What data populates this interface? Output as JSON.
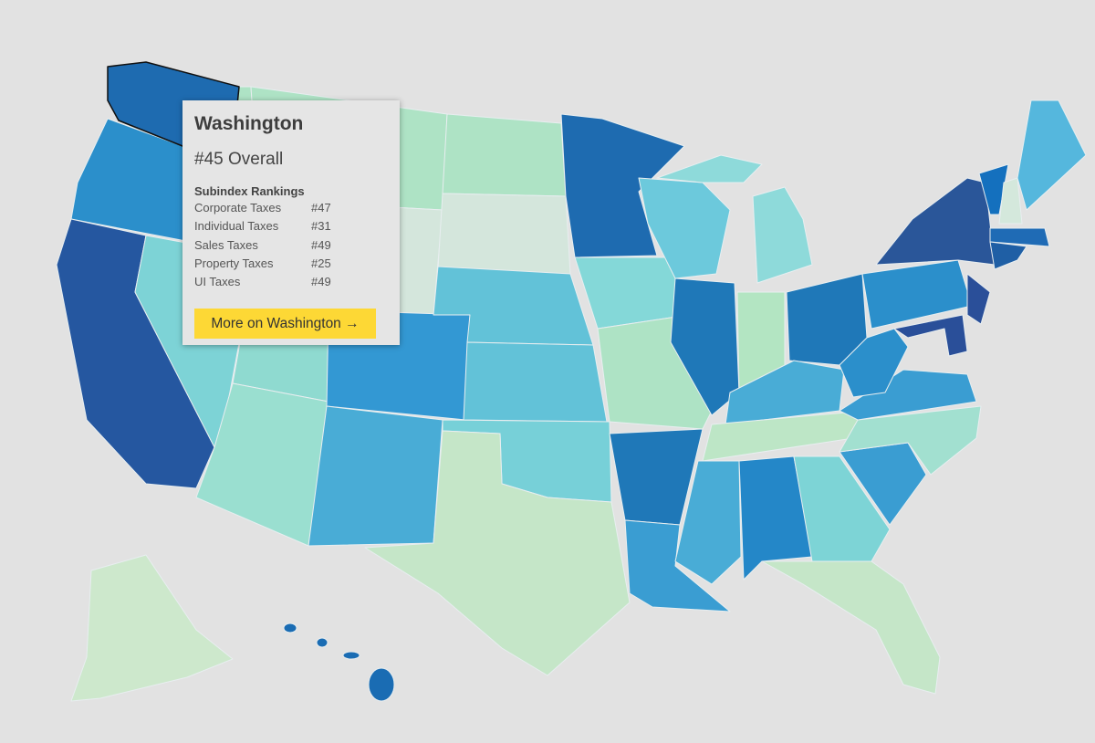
{
  "tooltip": {
    "title": "Washington",
    "overall": "#45 Overall",
    "subheading": "Subindex Rankings",
    "rows": [
      [
        "Corporate Taxes",
        "#47"
      ],
      [
        "Individual Taxes",
        "#31"
      ],
      [
        "Sales Taxes",
        "#49"
      ],
      [
        "Property Taxes",
        "#25"
      ],
      [
        "UI Taxes",
        "#49"
      ]
    ],
    "button": "More on Washington →"
  }
}
